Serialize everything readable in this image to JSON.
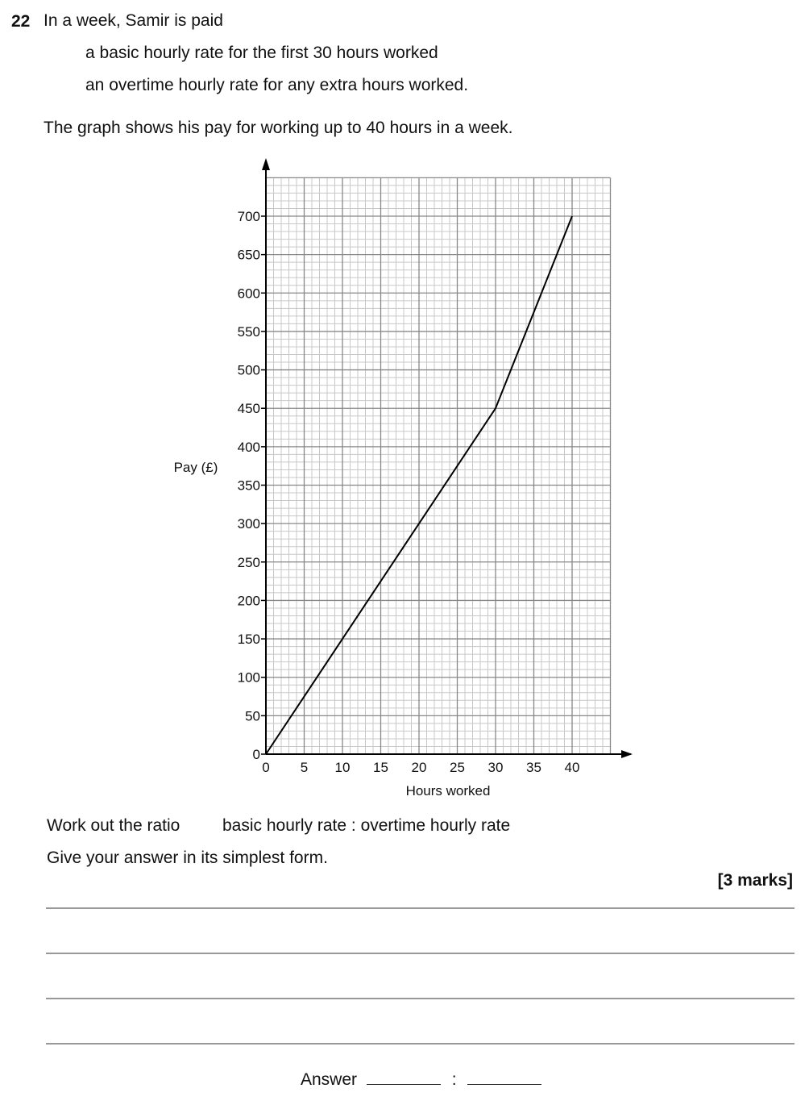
{
  "question": {
    "number": "22",
    "intro": "In a week, Samir is paid",
    "bullet1": "a basic hourly rate for the first 30 hours worked",
    "bullet2": "an overtime hourly rate for any extra hours worked.",
    "graph_intro": "The graph shows his pay for working up to 40 hours in a week.",
    "task1_prefix": "Work out the ratio",
    "task1_ratio": "basic hourly rate : overtime hourly rate",
    "task2": "Give your answer in its simplest form.",
    "marks": "[3 marks]",
    "answer_label": "Answer",
    "answer_separator": ":"
  },
  "chart_data": {
    "type": "line",
    "xlabel": "Hours worked",
    "ylabel": "Pay (£)",
    "xlim": [
      0,
      45
    ],
    "ylim": [
      0,
      750
    ],
    "x_ticks": [
      0,
      5,
      10,
      15,
      20,
      25,
      30,
      35,
      40
    ],
    "y_ticks": [
      0,
      50,
      100,
      150,
      200,
      250,
      300,
      350,
      400,
      450,
      500,
      550,
      600,
      650,
      700
    ],
    "x_minor_step": 1,
    "y_minor_step": 10,
    "grid": true,
    "series": [
      {
        "x": [
          0,
          30,
          40
        ],
        "y": [
          0,
          450,
          700
        ],
        "color": "#000000"
      }
    ]
  }
}
